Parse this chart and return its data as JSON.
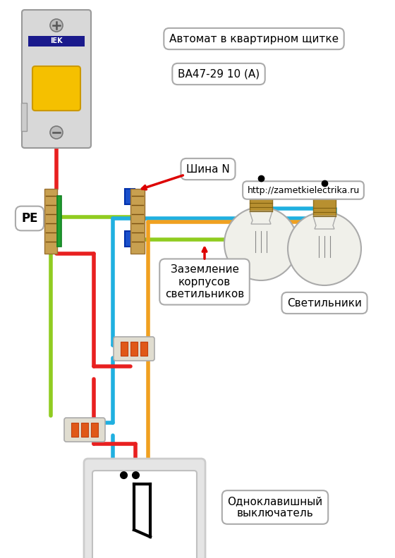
{
  "bg_color": "white",
  "wire_red": "#e82020",
  "wire_blue": "#20b0e0",
  "wire_green": "#90cc20",
  "wire_orange": "#f0a020",
  "lw": 4.0,
  "labels": {
    "automat": "Автомат в квартирном щитке",
    "model": "ВА47-29 10 (А)",
    "bus_n": "Шина N",
    "pe": "PE",
    "website": "http://zametkielectrika.ru",
    "grounding": "Заземление\nкорпусов\nсветильников",
    "lamps": "Светильники",
    "switch": "Одноклавишный\nвыключатель"
  },
  "figsize": [
    5.6,
    7.92
  ],
  "dpi": 100,
  "xlim": [
    0,
    560
  ],
  "ylim": [
    0,
    792
  ]
}
